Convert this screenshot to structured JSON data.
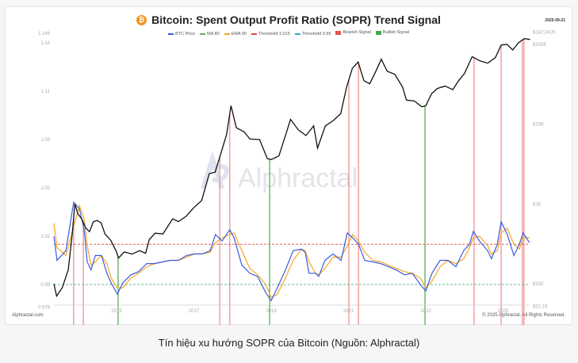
{
  "header": {
    "title": "Bitcoin: Spent Output Profit Ratio (SOPR) Trend Signal",
    "date": "2025-09-21",
    "logo_icon": "bitcoin-icon"
  },
  "footer": {
    "left": "Alphractal.com",
    "right": "© 2025 Alphractal. All Rights Reserved."
  },
  "watermark": "Alphractal",
  "caption": "Tín hiệu xu hướng SOPR của Bitcoin (Nguồn: Alphractal)",
  "chart_data": {
    "type": "line",
    "title": "Bitcoin: Spent Output Profit Ratio (SOPR) Trend Signal",
    "legend": [
      {
        "label": "BTC Price",
        "color": "#3b5bdb",
        "kind": "line"
      },
      {
        "label": "MA 80",
        "color": "#5cb85c",
        "kind": "line"
      },
      {
        "label": "EMA 90",
        "color": "#f5a623",
        "kind": "line"
      },
      {
        "label": "Threshold 1.015",
        "color": "#e04848",
        "kind": "line"
      },
      {
        "label": "Threshold 0.99",
        "color": "#36a9c9",
        "kind": "line"
      },
      {
        "label": "Bearish Signal",
        "color": "#e05555",
        "kind": "box"
      },
      {
        "label": "Bullish Signal",
        "color": "#4aa84a",
        "kind": "box"
      }
    ],
    "legend_position": "top-center",
    "x_ticks": [
      "2015",
      "2017",
      "2019",
      "2021",
      "2023",
      "2025"
    ],
    "left_axis": {
      "ticks": [
        "1.146",
        "1.14",
        "1.11",
        "1.08",
        "1.05",
        "1.02",
        "0.99",
        "0.976"
      ],
      "range": [
        0.976,
        1.146
      ]
    },
    "right_axis": {
      "scale": "log",
      "ticks": [
        {
          "label": "$142.342K",
          "value": 142342
        },
        {
          "label": "$100K",
          "value": 100000
        },
        {
          "label": "$10K",
          "value": 10000
        },
        {
          "label": "$1K",
          "value": 1000
        },
        {
          "label": "$100",
          "value": 100
        },
        {
          "label": "$52.19",
          "value": 52.19
        }
      ]
    },
    "thresholds": {
      "upper": 1.015,
      "lower": 0.99
    },
    "sopr_x": [
      2013.38,
      2013.46,
      2013.69,
      2013.89,
      2014.04,
      2014.16,
      2014.24,
      2014.34,
      2014.45,
      2014.61,
      2014.75,
      2014.86,
      2015.02,
      2015.16,
      2015.37,
      2015.57,
      2015.78,
      2015.98,
      2016.19,
      2016.39,
      2016.6,
      2016.81,
      2017.01,
      2017.22,
      2017.42,
      2017.56,
      2017.73,
      2017.93,
      2018.04,
      2018.24,
      2018.45,
      2018.65,
      2018.86,
      2019.0,
      2019.16,
      2019.37,
      2019.57,
      2019.78,
      2019.88,
      2019.98,
      2020.15,
      2020.23,
      2020.39,
      2020.6,
      2020.81,
      2020.97,
      2021.11,
      2021.26,
      2021.42,
      2021.63,
      2021.83,
      2022.04,
      2022.24,
      2022.45,
      2022.65,
      2022.86,
      2023.0,
      2023.16,
      2023.37,
      2023.57,
      2023.78,
      2023.98,
      2024.13,
      2024.23,
      2024.39,
      2024.6,
      2024.7,
      2024.85,
      2024.95,
      2025.11,
      2025.28,
      2025.42,
      2025.52,
      2025.68
    ],
    "sopr_ma80": [
      1.02,
      1.005,
      1.011,
      1.041,
      1.037,
      1.024,
      1.004,
      0.999,
      1.008,
      1.008,
      0.997,
      0.991,
      0.984,
      0.991,
      0.996,
      0.998,
      1.003,
      1.003,
      1.004,
      1.005,
      1.005,
      1.008,
      1.009,
      1.009,
      1.011,
      1.021,
      1.017,
      1.024,
      1.019,
      1.002,
      0.997,
      0.995,
      0.985,
      0.98,
      0.988,
      0.999,
      1.011,
      1.012,
      1.01,
      0.997,
      0.997,
      0.995,
      1.005,
      1.009,
      1.005,
      1.022,
      1.019,
      1.015,
      1.005,
      1.004,
      1.003,
      1.001,
      0.999,
      0.996,
      0.997,
      0.99,
      0.986,
      0.997,
      1.005,
      1.005,
      1.001,
      1.011,
      1.015,
      1.023,
      1.017,
      1.011,
      1.006,
      1.015,
      1.029,
      1.021,
      1.008,
      1.015,
      1.022,
      1.016
    ],
    "sopr_ema90": [
      1.028,
      1.013,
      1.008,
      1.026,
      1.039,
      1.031,
      1.014,
      1.002,
      1.004,
      1.008,
      1.003,
      0.994,
      0.988,
      0.988,
      0.994,
      0.997,
      1.001,
      1.003,
      1.004,
      1.005,
      1.005,
      1.007,
      1.009,
      1.009,
      1.01,
      1.016,
      1.019,
      1.021,
      1.022,
      1.011,
      1.0,
      0.996,
      0.99,
      0.982,
      0.984,
      0.994,
      1.005,
      1.012,
      1.011,
      1.004,
      0.997,
      0.996,
      1.0,
      1.007,
      1.007,
      1.014,
      1.021,
      1.017,
      1.01,
      1.005,
      1.004,
      1.002,
      1.0,
      0.998,
      0.997,
      0.994,
      0.988,
      0.992,
      1.001,
      1.005,
      1.003,
      1.006,
      1.013,
      1.019,
      1.02,
      1.014,
      1.009,
      1.011,
      1.022,
      1.025,
      1.015,
      1.012,
      1.019,
      1.019
    ],
    "price": [
      [
        2013.38,
        100
      ],
      [
        2013.45,
        70
      ],
      [
        2013.6,
        90
      ],
      [
        2013.75,
        150
      ],
      [
        2013.85,
        400
      ],
      [
        2013.92,
        1000
      ],
      [
        2014.0,
        750
      ],
      [
        2014.1,
        650
      ],
      [
        2014.2,
        500
      ],
      [
        2014.3,
        450
      ],
      [
        2014.4,
        600
      ],
      [
        2014.5,
        620
      ],
      [
        2014.6,
        580
      ],
      [
        2014.7,
        420
      ],
      [
        2014.85,
        350
      ],
      [
        2015.0,
        250
      ],
      [
        2015.05,
        210
      ],
      [
        2015.2,
        250
      ],
      [
        2015.4,
        235
      ],
      [
        2015.6,
        260
      ],
      [
        2015.75,
        240
      ],
      [
        2015.85,
        360
      ],
      [
        2016.0,
        430
      ],
      [
        2016.2,
        420
      ],
      [
        2016.45,
        650
      ],
      [
        2016.6,
        600
      ],
      [
        2016.8,
        700
      ],
      [
        2017.0,
        900
      ],
      [
        2017.2,
        1100
      ],
      [
        2017.4,
        2400
      ],
      [
        2017.55,
        2500
      ],
      [
        2017.7,
        4300
      ],
      [
        2017.85,
        7500
      ],
      [
        2017.96,
        17000
      ],
      [
        2018.1,
        9000
      ],
      [
        2018.3,
        8000
      ],
      [
        2018.45,
        6500
      ],
      [
        2018.7,
        6400
      ],
      [
        2018.9,
        3700
      ],
      [
        2019.0,
        3600
      ],
      [
        2019.2,
        4000
      ],
      [
        2019.4,
        8000
      ],
      [
        2019.5,
        11500
      ],
      [
        2019.7,
        8500
      ],
      [
        2019.9,
        7200
      ],
      [
        2020.1,
        9500
      ],
      [
        2020.2,
        5000
      ],
      [
        2020.4,
        9500
      ],
      [
        2020.6,
        11000
      ],
      [
        2020.8,
        13500
      ],
      [
        2020.95,
        29000
      ],
      [
        2021.1,
        50000
      ],
      [
        2021.25,
        60000
      ],
      [
        2021.4,
        35000
      ],
      [
        2021.55,
        32000
      ],
      [
        2021.7,
        45000
      ],
      [
        2021.85,
        65000
      ],
      [
        2022.0,
        46000
      ],
      [
        2022.2,
        42000
      ],
      [
        2022.4,
        29000
      ],
      [
        2022.5,
        20000
      ],
      [
        2022.7,
        19500
      ],
      [
        2022.9,
        16500
      ],
      [
        2023.0,
        17000
      ],
      [
        2023.15,
        24000
      ],
      [
        2023.3,
        28000
      ],
      [
        2023.5,
        30000
      ],
      [
        2023.7,
        27000
      ],
      [
        2023.85,
        35000
      ],
      [
        2024.0,
        43000
      ],
      [
        2024.2,
        70000
      ],
      [
        2024.4,
        62000
      ],
      [
        2024.6,
        58000
      ],
      [
        2024.8,
        68000
      ],
      [
        2024.95,
        98000
      ],
      [
        2025.1,
        100000
      ],
      [
        2025.25,
        85000
      ],
      [
        2025.4,
        105000
      ],
      [
        2025.55,
        118000
      ],
      [
        2025.7,
        115000
      ]
    ],
    "bearish_signals": [
      2013.89,
      2014.14,
      2017.67,
      2017.93,
      2021.01,
      2021.26,
      2024.25,
      2024.95,
      2025.5,
      2025.54
    ],
    "bullish_signals": [
      2015.04,
      2018.96,
      2022.98
    ],
    "colors": {
      "price": "#111111",
      "ma80": "#3b5bdb",
      "ema90": "#f5a623",
      "upper": "#e04848",
      "lower": "#2fa37a",
      "bearish": "#ee8a8a",
      "bullish": "#4aa84a"
    }
  }
}
